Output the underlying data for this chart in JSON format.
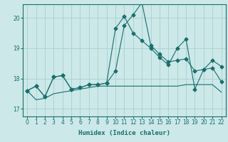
{
  "xlabel": "Humidex (Indice chaleur)",
  "xlim": [
    -0.5,
    22.5
  ],
  "ylim": [
    16.75,
    20.45
  ],
  "yticks": [
    17,
    18,
    19,
    20
  ],
  "xticks": [
    0,
    1,
    2,
    3,
    4,
    5,
    6,
    7,
    8,
    9,
    10,
    11,
    12,
    13,
    14,
    15,
    16,
    17,
    18,
    19,
    20,
    21,
    22
  ],
  "bg_color": "#cce8e8",
  "grid_color": "#aacfcf",
  "line_color": "#1a6e6e",
  "line1_y": [
    17.6,
    17.75,
    17.4,
    18.05,
    18.1,
    17.65,
    17.7,
    17.8,
    17.8,
    17.85,
    18.25,
    19.75,
    20.1,
    20.5,
    19.1,
    18.8,
    18.55,
    18.6,
    18.65,
    18.25,
    18.3,
    18.6,
    18.4
  ],
  "line2_y": [
    17.6,
    17.75,
    17.4,
    18.05,
    18.1,
    17.65,
    17.7,
    17.8,
    17.8,
    17.85,
    19.65,
    20.05,
    19.5,
    19.25,
    19.0,
    18.7,
    18.45,
    19.0,
    19.3,
    17.65,
    18.3,
    18.35,
    17.9
  ],
  "line3_y": [
    17.6,
    17.3,
    17.35,
    17.5,
    17.55,
    17.6,
    17.65,
    17.7,
    17.75,
    17.75,
    17.75,
    17.75,
    17.75,
    17.75,
    17.75,
    17.75,
    17.75,
    17.75,
    17.8,
    17.8,
    17.8,
    17.8,
    17.55
  ],
  "marker": "D",
  "markersize": 2.5,
  "linewidth": 0.8
}
